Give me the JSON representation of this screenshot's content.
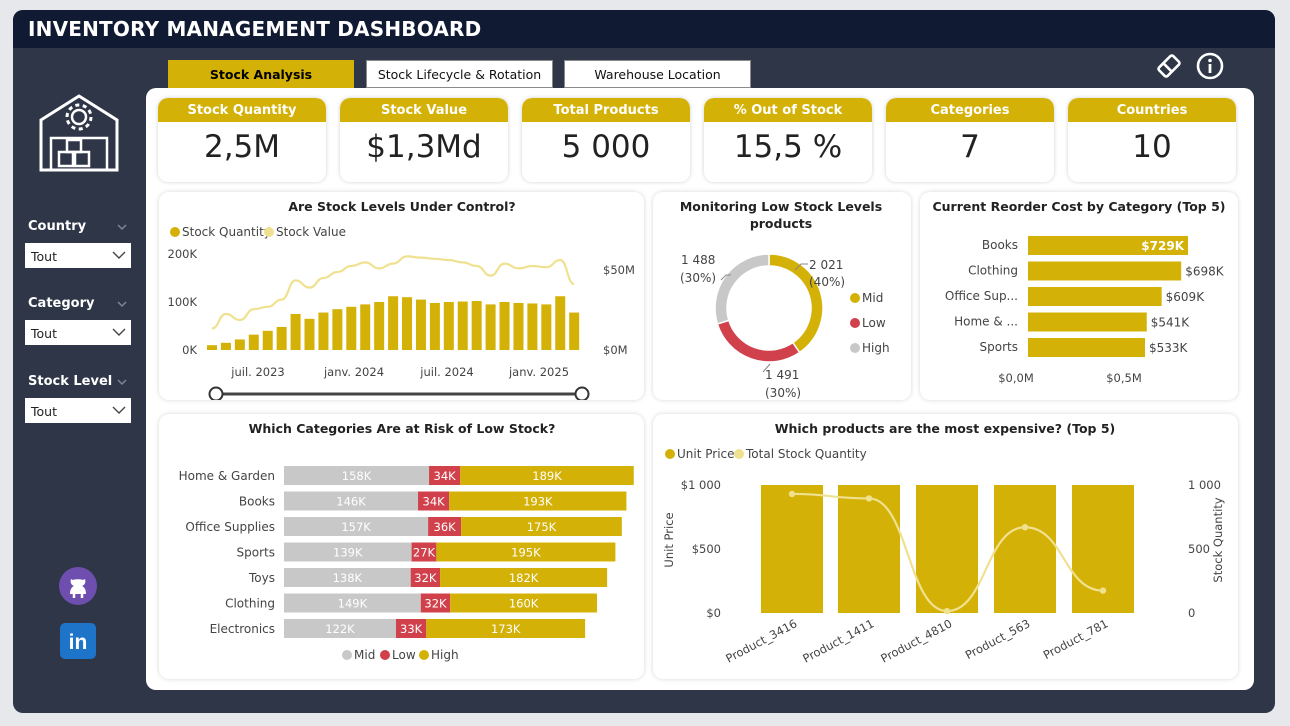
{
  "app": {
    "title": "INVENTORY MANAGEMENT DASHBOARD"
  },
  "tabs": [
    {
      "label": "Stock Analysis",
      "active": true
    },
    {
      "label": "Stock Lifecycle & Rotation",
      "active": false
    },
    {
      "label": "Warehouse Location",
      "active": false
    }
  ],
  "header_icons": [
    "eraser-icon",
    "info-icon"
  ],
  "filters": [
    {
      "label": "Country",
      "value": "Tout"
    },
    {
      "label": "Category",
      "value": "Tout"
    },
    {
      "label": "Stock Level",
      "value": "Tout"
    }
  ],
  "kpis": [
    {
      "label": "Stock Quantity",
      "value": "2,5M"
    },
    {
      "label": "Stock Value",
      "value": "$1,3Md"
    },
    {
      "label": "Total Products",
      "value": "5 000"
    },
    {
      "label": "% Out of Stock",
      "value": "15,5 %"
    },
    {
      "label": "Categories",
      "value": "7"
    },
    {
      "label": "Countries",
      "value": "10"
    }
  ],
  "colors": {
    "accent": "#d4b106",
    "light_accent": "#efe18f",
    "low": "#d0414b",
    "mid": "#c8c8c8",
    "frame": "#2e3648",
    "titlebar": "#101a33"
  },
  "social": [
    "github-icon",
    "linkedin-icon"
  ],
  "chart_data": [
    {
      "id": "stock_levels",
      "type": "bar",
      "title": "Are Stock Levels Under Control?",
      "legend": [
        "Stock Quantity",
        "Stock Value"
      ],
      "y_left_ticks": [
        "200K",
        "100K",
        "0K"
      ],
      "y_right_ticks": [
        "$50M",
        "$0M"
      ],
      "x_ticks": [
        "juil. 2023",
        "janv. 2024",
        "juil. 2024",
        "janv. 2025"
      ],
      "ylim": [
        0,
        200000
      ],
      "y2lim": [
        0,
        80000000
      ],
      "bar_values": [
        10000,
        15000,
        22000,
        32000,
        40000,
        48000,
        75000,
        65000,
        78000,
        85000,
        90000,
        95000,
        100000,
        112000,
        110000,
        105000,
        98000,
        100000,
        101000,
        102000,
        95000,
        100000,
        98000,
        97000,
        95000,
        112000,
        78000
      ],
      "line_values": [
        18000000,
        30000000,
        25000000,
        34000000,
        36000000,
        42000000,
        58000000,
        52000000,
        60000000,
        65000000,
        70000000,
        73000000,
        68000000,
        72000000,
        78000000,
        77000000,
        76000000,
        75000000,
        73000000,
        70000000,
        62000000,
        72000000,
        68000000,
        70000000,
        69000000,
        75000000,
        55000000
      ]
    },
    {
      "id": "low_stock_donut",
      "type": "pie",
      "title": "Monitoring Low Stock Levels",
      "subtitle": "products",
      "slices": [
        {
          "name": "Mid",
          "value": 2021,
          "label": "2 021",
          "pct": "(40%)"
        },
        {
          "name": "Low",
          "value": 1491,
          "label": "1 491",
          "pct": "(30%)"
        },
        {
          "name": "High",
          "value": 1488,
          "label": "1 488",
          "pct": "(30%)"
        }
      ]
    },
    {
      "id": "reorder_cost",
      "type": "bar",
      "title": "Current Reorder Cost by Category (Top 5)",
      "categories": [
        "Books",
        "Clothing",
        "Office Sup...",
        "Home & ...",
        "Sports"
      ],
      "values": [
        729,
        698,
        609,
        541,
        533
      ],
      "labels": [
        "$729K",
        "$698K",
        "$609K",
        "$541K",
        "$533K"
      ],
      "x_ticks": [
        "$0,0M",
        "$0,5M"
      ],
      "xlim": [
        0,
        800
      ]
    },
    {
      "id": "risk_low_stock",
      "type": "bar",
      "title": "Which Categories Are at Risk of Low Stock?",
      "categories": [
        "Home & Garden",
        "Books",
        "Office Supplies",
        "Sports",
        "Toys",
        "Clothing",
        "Electronics"
      ],
      "series": [
        {
          "name": "Mid",
          "values": [
            158,
            146,
            157,
            139,
            138,
            149,
            122
          ],
          "labels": [
            "158K",
            "146K",
            "157K",
            "139K",
            "138K",
            "149K",
            "122K"
          ]
        },
        {
          "name": "Low",
          "values": [
            34,
            34,
            36,
            27,
            32,
            32,
            33
          ],
          "labels": [
            "34K",
            "34K",
            "36K",
            "27K",
            "32K",
            "32K",
            "33K"
          ]
        },
        {
          "name": "High",
          "values": [
            189,
            193,
            175,
            195,
            182,
            160,
            173
          ],
          "labels": [
            "189K",
            "193K",
            "175K",
            "195K",
            "182K",
            "160K",
            "173K"
          ]
        }
      ]
    },
    {
      "id": "expensive_products",
      "type": "bar",
      "title": "Which products are the most expensive? (Top 5)",
      "legend": [
        "Unit Price",
        "Total Stock Quantity"
      ],
      "ylabel": "Unit Price",
      "y2label": "Stock Quantity",
      "y_left_ticks": [
        "$1 000",
        "$500",
        "$0"
      ],
      "y_right_ticks": [
        "1 000",
        "500",
        "0"
      ],
      "categories": [
        "Product_3416",
        "Product_1411",
        "Product_4810",
        "Product_563",
        "Product_781"
      ],
      "values": [
        1000,
        1000,
        1000,
        1000,
        1000
      ],
      "line_values": [
        930,
        895,
        15,
        670,
        175
      ],
      "ylim": [
        0,
        1000
      ]
    }
  ]
}
